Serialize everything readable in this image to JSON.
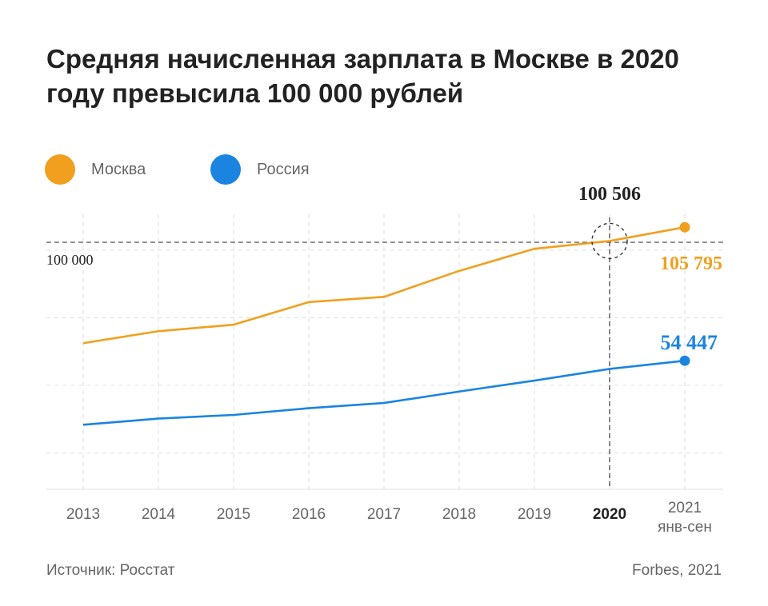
{
  "title_lines": [
    "Средняя начисленная зарплата в Москве в 2020",
    "году превысила 100 000 рублей"
  ],
  "legend": [
    {
      "label": "Москва",
      "color": "#f0a01e"
    },
    {
      "label": "Россия",
      "color": "#1b84e0"
    }
  ],
  "footer": {
    "source": "Источник: Росстат",
    "credit": "Forbes, 2021"
  },
  "chart_data": {
    "type": "line",
    "x": [
      "2013",
      "2014",
      "2015",
      "2016",
      "2017",
      "2018",
      "2019",
      "2020",
      "2021 янв-сен"
    ],
    "x_tick_labels": [
      [
        "2013"
      ],
      [
        "2014"
      ],
      [
        "2015"
      ],
      [
        "2016"
      ],
      [
        "2017"
      ],
      [
        "2018"
      ],
      [
        "2019"
      ],
      [
        "2020"
      ],
      [
        "2021",
        "янв-сен"
      ]
    ],
    "highlight_x": "2020",
    "series": [
      {
        "name": "Москва",
        "color": "#f0a01e",
        "values": [
          61200,
          65800,
          68300,
          77000,
          79000,
          89000,
          97500,
          100506,
          105795
        ],
        "end_label": "105 795"
      },
      {
        "name": "Россия",
        "color": "#1b84e0",
        "values": [
          29800,
          32200,
          33600,
          36200,
          38200,
          42600,
          46800,
          51300,
          54447
        ],
        "end_label": "54 447"
      }
    ],
    "reference_line": {
      "value": 100000,
      "label": "100 000"
    },
    "annotation": {
      "x": "2020",
      "value": 100506,
      "label": "100 506"
    },
    "ylim": [
      5000,
      110000
    ],
    "grid": "dashed horizontal",
    "legend_position": "top-left"
  }
}
